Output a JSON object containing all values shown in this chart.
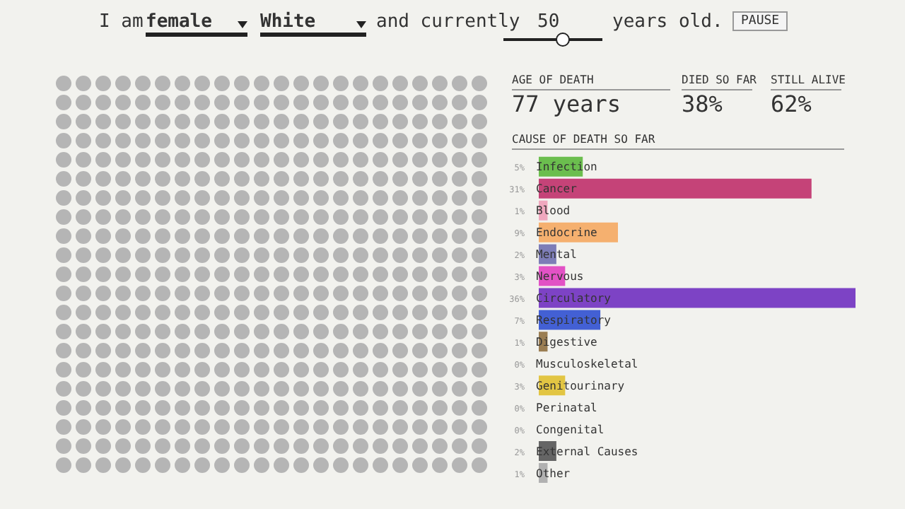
{
  "chart_data": {
    "type": "bar",
    "orientation": "horizontal",
    "title": "CAUSE OF DEATH SO FAR",
    "categories": [
      "Infection",
      "Cancer",
      "Blood",
      "Endocrine",
      "Mental",
      "Nervous",
      "Circulatory",
      "Respiratory",
      "Digestive",
      "Musculoskeletal",
      "Genitourinary",
      "Perinatal",
      "Congenital",
      "External Causes",
      "Other"
    ],
    "values": [
      5,
      31,
      1,
      9,
      2,
      3,
      36,
      7,
      1,
      0,
      3,
      0,
      0,
      2,
      1
    ],
    "value_labels": [
      "5%",
      "31%",
      "1%",
      "9%",
      "2%",
      "3%",
      "36%",
      "7%",
      "1%",
      "0%",
      "3%",
      "0%",
      "0%",
      "2%",
      "1%"
    ],
    "colors": [
      "#5cb83c",
      "#c0306a",
      "#f0a0b8",
      "#f5a860",
      "#7070b0",
      "#e040c0",
      "#7030c0",
      "#3050d0",
      "#907040",
      "#c04050",
      "#e0c030",
      "#aaaaaa",
      "#aaaaaa",
      "#555555",
      "#aaaaaa"
    ],
    "annotations": [
      "I am",
      "female",
      "White",
      "and currently",
      "50",
      "years old.",
      "PAUSE",
      "AGE OF DEATH",
      "77 years",
      "DIED SO FAR",
      "38%",
      "STILL ALIVE",
      "62%"
    ]
  }
}
